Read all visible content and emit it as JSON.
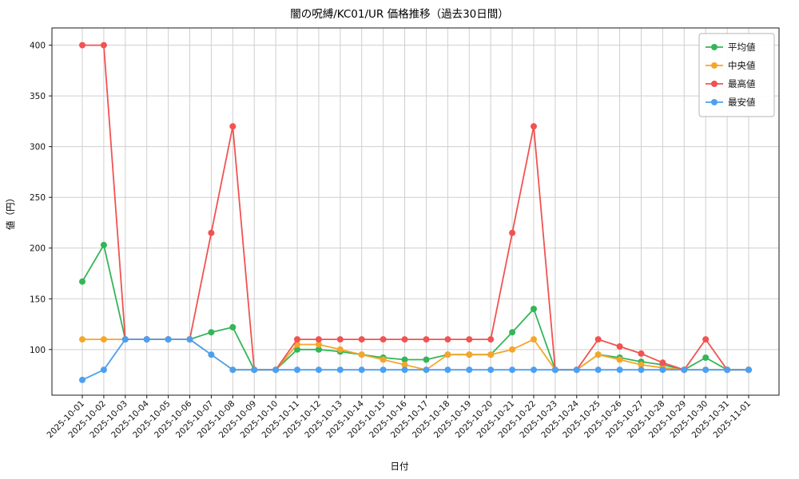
{
  "page": {
    "title": "闇の呪縛/KC01/UR 価格推移（過去30日間）"
  },
  "chart_data": {
    "type": "line",
    "title": "闇の呪縛/KC01/UR 価格推移（過去30日間）",
    "xlabel": "日付",
    "ylabel": "値（円）",
    "ylim": [
      55,
      417
    ],
    "yticks": [
      100,
      150,
      200,
      250,
      300,
      350,
      400
    ],
    "grid": true,
    "legend_position": "top-right",
    "categories": [
      "2025-10-01",
      "2025-10-02",
      "2025-10-03",
      "2025-10-04",
      "2025-10-05",
      "2025-10-06",
      "2025-10-07",
      "2025-10-08",
      "2025-10-09",
      "2025-10-10",
      "2025-10-11",
      "2025-10-12",
      "2025-10-13",
      "2025-10-14",
      "2025-10-15",
      "2025-10-16",
      "2025-10-17",
      "2025-10-18",
      "2025-10-19",
      "2025-10-20",
      "2025-10-21",
      "2025-10-22",
      "2025-10-23",
      "2025-10-24",
      "2025-10-25",
      "2025-10-26",
      "2025-10-27",
      "2025-10-28",
      "2025-10-29",
      "2025-10-30",
      "2025-10-31",
      "2025-11-01"
    ],
    "series": [
      {
        "name": "平均値",
        "color": "#34b558",
        "values": [
          167,
          203,
          110,
          110,
          110,
          110,
          117,
          122,
          80,
          80,
          100,
          100,
          98,
          95,
          92,
          90,
          90,
          95,
          95,
          95,
          117,
          140,
          80,
          80,
          95,
          92,
          88,
          85,
          80,
          92,
          80,
          80
        ]
      },
      {
        "name": "中央値",
        "color": "#f5a62a",
        "values": [
          110,
          110,
          110,
          110,
          110,
          110,
          95,
          80,
          80,
          80,
          105,
          105,
          100,
          95,
          90,
          85,
          80,
          95,
          95,
          95,
          100,
          110,
          80,
          80,
          95,
          90,
          85,
          82,
          80,
          80,
          80,
          80
        ]
      },
      {
        "name": "最高値",
        "color": "#f25252",
        "values": [
          400,
          400,
          110,
          110,
          110,
          110,
          215,
          320,
          80,
          80,
          110,
          110,
          110,
          110,
          110,
          110,
          110,
          110,
          110,
          110,
          215,
          320,
          80,
          80,
          110,
          103,
          96,
          87,
          80,
          110,
          80,
          80
        ]
      },
      {
        "name": "最安値",
        "color": "#4da0f0",
        "values": [
          70,
          80,
          110,
          110,
          110,
          110,
          95,
          80,
          80,
          80,
          80,
          80,
          80,
          80,
          80,
          80,
          80,
          80,
          80,
          80,
          80,
          80,
          80,
          80,
          80,
          80,
          80,
          80,
          80,
          80,
          80,
          80
        ]
      }
    ]
  }
}
